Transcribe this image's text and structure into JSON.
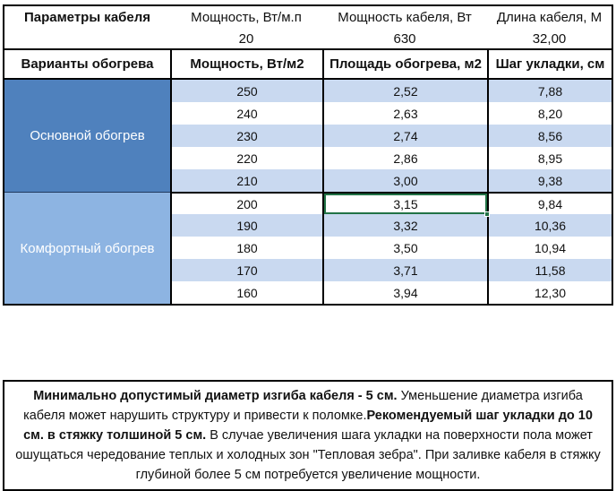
{
  "params_block": {
    "label": "Параметры кабеля",
    "cols": [
      {
        "title": "Мощность, Вт/м.п",
        "value": "20"
      },
      {
        "title": "Мощность кабеля, Вт",
        "value": "630"
      },
      {
        "title": "Длина кабеля, М",
        "value": "32,00"
      }
    ]
  },
  "table": {
    "headers": [
      "Варианты обогрева",
      "Мощность, Вт/м2",
      "Площадь обогрева, м2",
      "Шаг укладки, см"
    ],
    "stripe_color": "#C9D9F0",
    "sections": [
      {
        "label": "Основной обогрев",
        "color": "#4F81BD",
        "rows": [
          [
            "250",
            "2,52",
            "7,88"
          ],
          [
            "240",
            "2,63",
            "8,20"
          ],
          [
            "230",
            "2,74",
            "8,56"
          ],
          [
            "220",
            "2,86",
            "8,95"
          ],
          [
            "210",
            "3,00",
            "9,38"
          ]
        ]
      },
      {
        "label": "Комфортный обогрев",
        "color": "#8DB4E2",
        "rows": [
          [
            "200",
            "3,15",
            "9,84"
          ],
          [
            "190",
            "3,32",
            "10,36"
          ],
          [
            "180",
            "3,50",
            "10,94"
          ],
          [
            "170",
            "3,71",
            "11,58"
          ],
          [
            "160",
            "3,94",
            "12,30"
          ]
        ]
      }
    ],
    "selected_cell": {
      "section": 1,
      "row": 0,
      "col": 1,
      "value": "3,15",
      "border_color": "#217346"
    }
  },
  "note": {
    "segments": [
      {
        "text": "Минимально допустимый диаметр изгиба кабеля - 5 см.",
        "bold": true
      },
      {
        "text": "  Уменьшение диаметра изгиба кабеля может нарушить структуру и привести к поломке.",
        "bold": false
      },
      {
        "text": "Рекомендуемый шаг укладки до 10 см. в стяжку толшиной 5 см.",
        "bold": true
      },
      {
        "text": " В  случае увеличения шага укладки на поверхности пола может ошущаться чередование теплых и холодных зон \"Тепловая зебра\". При заливке кабеля в стяжку глубиной более 5 см потребуется увеличение мощности.",
        "bold": false
      }
    ]
  }
}
